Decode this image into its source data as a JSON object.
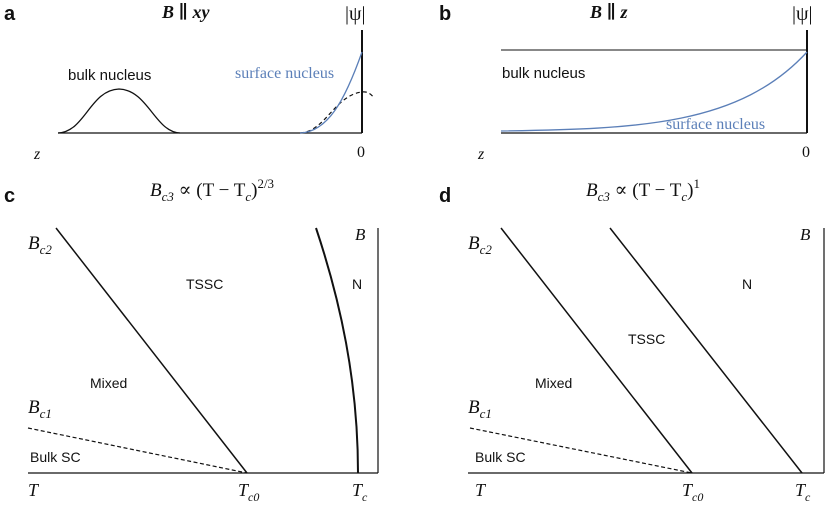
{
  "colors": {
    "ink": "#111111",
    "surface": "#5b7fb8"
  },
  "panel_a": {
    "letter": "a",
    "title": "B ∥ xy",
    "psi": "|ψ|",
    "bulk_label": "bulk nucleus",
    "surface_label": "surface nucleus",
    "z_label": "z",
    "zero_label": "0"
  },
  "panel_b": {
    "letter": "b",
    "title": "B ∥ z",
    "psi": "|ψ|",
    "bulk_label": "bulk nucleus",
    "surface_label": "surface nucleus",
    "z_label": "z",
    "zero_label": "0"
  },
  "panel_c": {
    "letter": "c",
    "equation": "B_c3 ∝ (T − T_c)^(2/3)",
    "eq_main": "B",
    "eq_sub": "c3",
    "eq_mid": " ∝ (T − T",
    "eq_sub2": "c",
    "eq_close": ")",
    "eq_sup": "2/3",
    "bc2": "B",
    "bc2_sub": "c2",
    "bc1": "B",
    "bc1_sub": "c1",
    "b_axis": "B",
    "t_axis": "T",
    "tc0": "T",
    "tc0_sub": "c0",
    "tc": "T",
    "tc_sub": "c",
    "region_tssc": "TSSC",
    "region_n": "N",
    "region_mixed": "Mixed",
    "region_bulk": "Bulk SC"
  },
  "panel_d": {
    "letter": "d",
    "equation": "B_c3 ∝ (T − T_c)^1",
    "eq_main": "B",
    "eq_sub": "c3",
    "eq_mid": " ∝ (T − T",
    "eq_sub2": "c",
    "eq_close": ")",
    "eq_sup": "1",
    "bc2": "B",
    "bc2_sub": "c2",
    "bc1": "B",
    "bc1_sub": "c1",
    "b_axis": "B",
    "t_axis": "T",
    "tc0": "T",
    "tc0_sub": "c0",
    "tc": "T",
    "tc_sub": "c",
    "region_tssc": "TSSC",
    "region_n": "N",
    "region_mixed": "Mixed",
    "region_bulk": "Bulk SC"
  }
}
